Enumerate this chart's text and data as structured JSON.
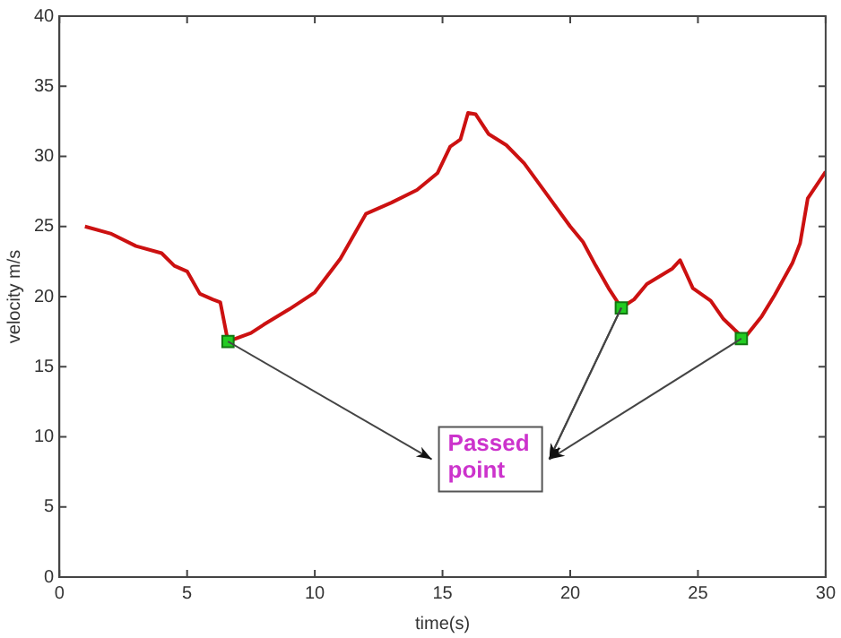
{
  "chart_data": {
    "type": "line",
    "xlabel": "time(s)",
    "ylabel": "velocity m/s",
    "xlim": [
      0,
      30
    ],
    "ylim": [
      0,
      40
    ],
    "xticks": [
      0,
      5,
      10,
      15,
      20,
      25,
      30
    ],
    "yticks": [
      0,
      5,
      10,
      15,
      20,
      25,
      30,
      35,
      40
    ],
    "grid": false,
    "legend": false,
    "line_style": "solid",
    "annotations": [
      {
        "text": "Passed point",
        "x": 22,
        "y": 19.2
      }
    ],
    "series": [
      {
        "color": "#cc1111",
        "marker": "none",
        "x": [
          1,
          2,
          3,
          4,
          4.5,
          5,
          5.5,
          6,
          6.3,
          6.6,
          7.5,
          8,
          9,
          10,
          11,
          12,
          13,
          14,
          14.8,
          15.3,
          15.7,
          16,
          16.3,
          16.8,
          17.5,
          18.2,
          19,
          20,
          20.5,
          21,
          21.5,
          22,
          22.5,
          23,
          24,
          24.3,
          24.8,
          25.5,
          26,
          26.8,
          27.5,
          28,
          28.7,
          29,
          29.3,
          30
        ],
        "values": [
          25,
          24.5,
          23.6,
          23.1,
          22.2,
          21.8,
          20.2,
          19.8,
          19.6,
          16.8,
          17.4,
          18,
          19.1,
          20.3,
          22.7,
          25.9,
          26.7,
          27.6,
          28.8,
          30.7,
          31.2,
          33.1,
          33,
          31.6,
          30.8,
          29.5,
          27.5,
          25,
          23.9,
          22.2,
          20.6,
          19.2,
          19.8,
          20.9,
          22,
          22.6,
          20.6,
          19.7,
          18.4,
          17,
          18.6,
          20.1,
          22.4,
          23.8,
          27,
          28.9
        ]
      },
      {
        "type": "scatter",
        "color": "#22cc22",
        "marker": "square",
        "x": [
          6.6,
          22,
          26.7
        ],
        "values": [
          16.8,
          19.2,
          17
        ]
      }
    ]
  }
}
